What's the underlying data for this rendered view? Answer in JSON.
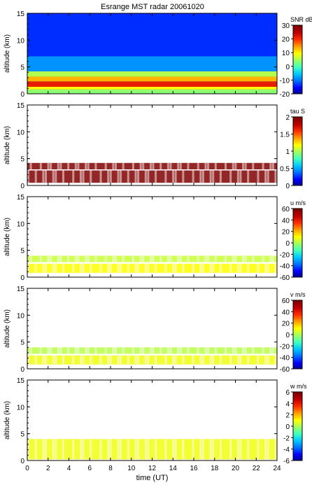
{
  "title": "Esrange MST radar 20061020",
  "chart_data": [
    {
      "type": "heatmap",
      "ylabel": "altitude (km)",
      "ylim": [
        0,
        15
      ],
      "yticks": [
        "0",
        "5",
        "10",
        "15"
      ],
      "xlim": [
        0,
        24
      ],
      "colorbar_label": "SNR dB",
      "colorbar_ticks": [
        "30",
        "20",
        "10",
        "0",
        "-10",
        "-20"
      ],
      "clim": [
        -20,
        30
      ],
      "layers": [
        {
          "alt": [
            0.0,
            0.8
          ],
          "value": 4
        },
        {
          "alt": [
            0.8,
            1.3
          ],
          "value": 10
        },
        {
          "alt": [
            1.3,
            2.3
          ],
          "value": 22
        },
        {
          "alt": [
            2.3,
            3.2
          ],
          "value": 14
        },
        {
          "alt": [
            3.2,
            4.2
          ],
          "value": 6
        },
        {
          "alt": [
            4.2,
            7.0
          ],
          "value": -8
        },
        {
          "alt": [
            7.0,
            15.0
          ],
          "value": -13
        }
      ]
    },
    {
      "type": "heatmap",
      "ylabel": "altitude (km)",
      "ylim": [
        0,
        15
      ],
      "yticks": [
        "0",
        "5",
        "10",
        "15"
      ],
      "xlim": [
        0,
        24
      ],
      "colorbar_label": "tau S",
      "colorbar_ticks": [
        "2",
        "1.5",
        "1",
        "0.5",
        "0"
      ],
      "clim": [
        0,
        2
      ],
      "layers": [
        {
          "alt": [
            0.5,
            2.8
          ],
          "value": 2
        },
        {
          "alt": [
            3.0,
            4.2
          ],
          "value": 2
        }
      ]
    },
    {
      "type": "heatmap",
      "ylabel": "altitude (km)",
      "ylim": [
        0,
        15
      ],
      "yticks": [
        "0",
        "5",
        "10",
        "15"
      ],
      "xlim": [
        0,
        24
      ],
      "colorbar_label": "u m/s",
      "colorbar_ticks": [
        "60",
        "40",
        "20",
        "0",
        "-20",
        "-40",
        "-60"
      ],
      "clim": [
        -60,
        60
      ],
      "layers": [
        {
          "alt": [
            0.8,
            2.5
          ],
          "value": 12
        },
        {
          "alt": [
            2.8,
            4.0
          ],
          "value": 5
        }
      ]
    },
    {
      "type": "heatmap",
      "ylabel": "altitude (km)",
      "ylim": [
        0,
        15
      ],
      "yticks": [
        "0",
        "5",
        "10",
        "15"
      ],
      "xlim": [
        0,
        24
      ],
      "colorbar_label": "v m/s",
      "colorbar_ticks": [
        "60",
        "40",
        "20",
        "0",
        "-20",
        "-40",
        "-60"
      ],
      "clim": [
        -60,
        60
      ],
      "layers": [
        {
          "alt": [
            0.8,
            2.5
          ],
          "value": 10
        },
        {
          "alt": [
            2.8,
            4.0
          ],
          "value": 3
        }
      ]
    },
    {
      "type": "heatmap",
      "ylabel": "altitude (km)",
      "ylim": [
        0,
        15
      ],
      "yticks": [
        "0",
        "5",
        "10",
        "15"
      ],
      "xlim": [
        0,
        24
      ],
      "xlabel": "time (UT)",
      "xticks": [
        "0",
        "2",
        "4",
        "6",
        "8",
        "10",
        "12",
        "14",
        "16",
        "18",
        "20",
        "22",
        "24"
      ],
      "colorbar_label": "w m/s",
      "colorbar_ticks": [
        "6",
        "4",
        "2",
        "0",
        "-2",
        "-4",
        "-6"
      ],
      "clim": [
        -6,
        6
      ],
      "layers": [
        {
          "alt": [
            0.2,
            4.0
          ],
          "value": 1
        }
      ]
    }
  ]
}
